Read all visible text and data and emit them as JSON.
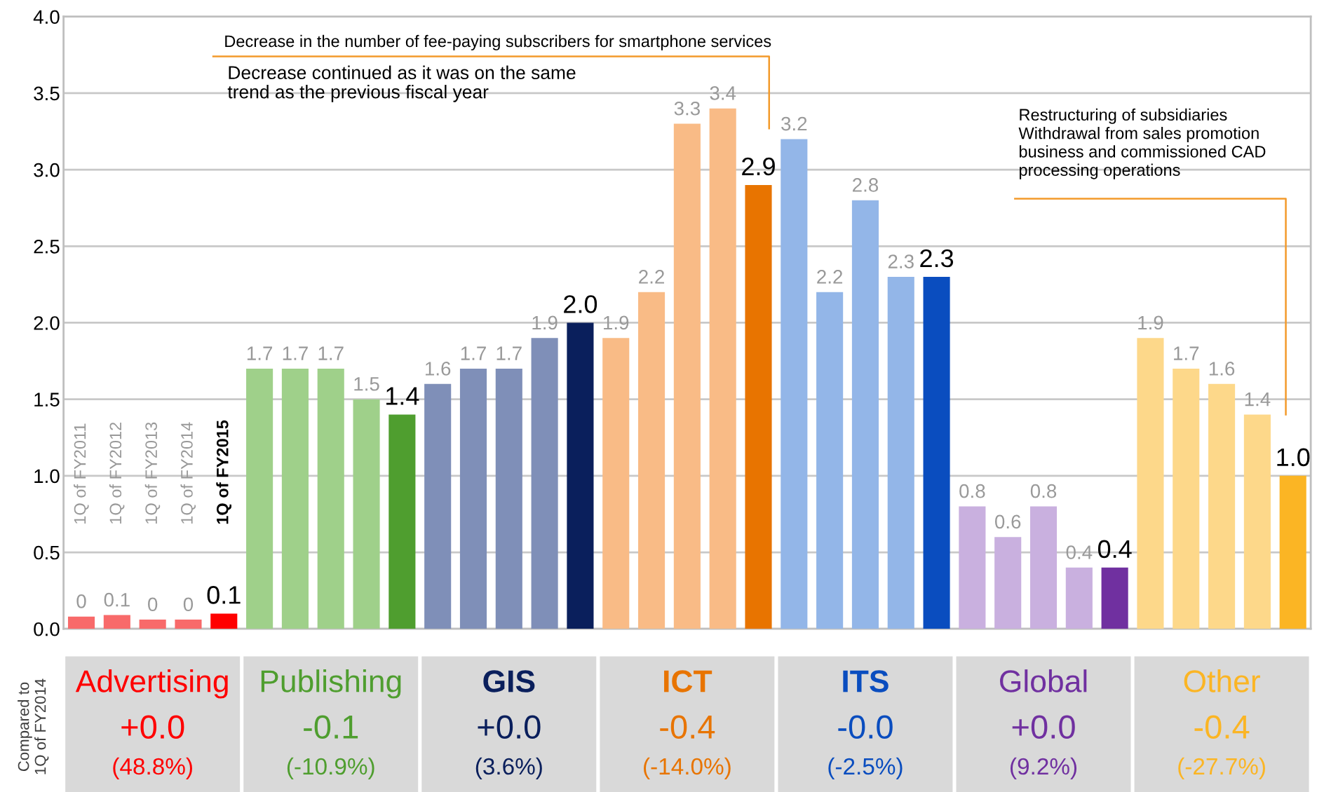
{
  "chart_data": {
    "type": "bar",
    "categories": [
      "1Q of FY2011",
      "1Q of FY2012",
      "1Q of FY2013",
      "1Q of FY2014",
      "1Q of FY2015",
      null,
      null,
      null,
      null,
      null,
      null,
      null,
      null,
      null,
      null,
      null,
      null,
      null,
      null,
      null,
      null,
      null,
      null,
      null,
      null,
      null,
      null,
      null,
      null,
      null,
      null,
      null,
      null,
      null,
      null
    ],
    "values": [
      0.08,
      0.09,
      0.06,
      0.06,
      0.1,
      1.7,
      1.7,
      1.7,
      1.5,
      1.4,
      1.6,
      1.7,
      1.7,
      1.9,
      2.0,
      1.9,
      2.2,
      3.3,
      3.4,
      2.9,
      3.2,
      2.2,
      2.8,
      2.3,
      2.3,
      0.8,
      0.6,
      0.8,
      0.4,
      0.4,
      1.9,
      1.7,
      1.6,
      1.4,
      1.0
    ],
    "value_labels": [
      "0",
      "0.1",
      "0",
      "0",
      "0.1",
      "1.7",
      "1.7",
      "1.7",
      "1.5",
      "1.4",
      "1.6",
      "1.7",
      "1.7",
      "1.9",
      "2.0",
      "1.9",
      "2.2",
      "3.3",
      "3.4",
      "2.9",
      "3.2",
      "2.2",
      "2.8",
      "2.3",
      "2.3",
      "0.8",
      "0.6",
      "0.8",
      "0.4",
      "0.4",
      "1.9",
      "1.7",
      "1.6",
      "1.4",
      "1.0"
    ],
    "colors": [
      "#f86a6a",
      "#f86a6a",
      "#f86a6a",
      "#f86a6a",
      "#ff0000",
      "#9fd08a",
      "#9fd08a",
      "#9fd08a",
      "#9fd08a",
      "#4f9e2f",
      "#7f8fb8",
      "#7f8fb8",
      "#7f8fb8",
      "#7f8fb8",
      "#0a1f5c",
      "#f9bb86",
      "#f9bb86",
      "#f9bb86",
      "#f9bb86",
      "#e87400",
      "#93b6e8",
      "#93b6e8",
      "#93b6e8",
      "#93b6e8",
      "#0a4dbf",
      "#c9b0df",
      "#c9b0df",
      "#c9b0df",
      "#c9b0df",
      "#7030a0",
      "#fdd88a",
      "#fdd88a",
      "#fdd88a",
      "#fdd88a",
      "#fbb524"
    ],
    "ylim": [
      0,
      4
    ],
    "yticks": [
      {
        "value": 0,
        "label": "0.0"
      },
      {
        "value": 0.5,
        "label": "0.5"
      },
      {
        "value": 1,
        "label": "1.0"
      },
      {
        "value": 1.5,
        "label": "1.5"
      },
      {
        "value": 2,
        "label": "2.0"
      },
      {
        "value": 2.5,
        "label": "2.5"
      },
      {
        "value": 3,
        "label": "3.0"
      },
      {
        "value": 3.5,
        "label": "3.5"
      },
      {
        "value": 4,
        "label": "4.0"
      }
    ],
    "grid": "y",
    "annotations": [
      "Decrease in the number of fee-paying subscribers for smartphone services",
      "Decrease continued as it was on the same\ntrend as the previous fiscal year",
      "Restructuring of subsidiaries\nWithdrawal from sales promotion\nbusiness and commissioned CAD\nprocessing operations",
      "Compared to\n1Q of FY2014",
      "Advertising",
      "+0.0",
      "(48.8%)",
      "Publishing",
      "-0.1",
      "(-10.9%)",
      "GIS",
      "+0.0",
      "(3.6%)",
      "ICT",
      "-0.4",
      "(-14.0%)",
      "ITS",
      "-0.0",
      "(-2.5%)",
      "Global",
      "+0.0",
      "(9.2%)",
      "Other",
      "-0.4",
      "(-27.7%)"
    ]
  }
}
